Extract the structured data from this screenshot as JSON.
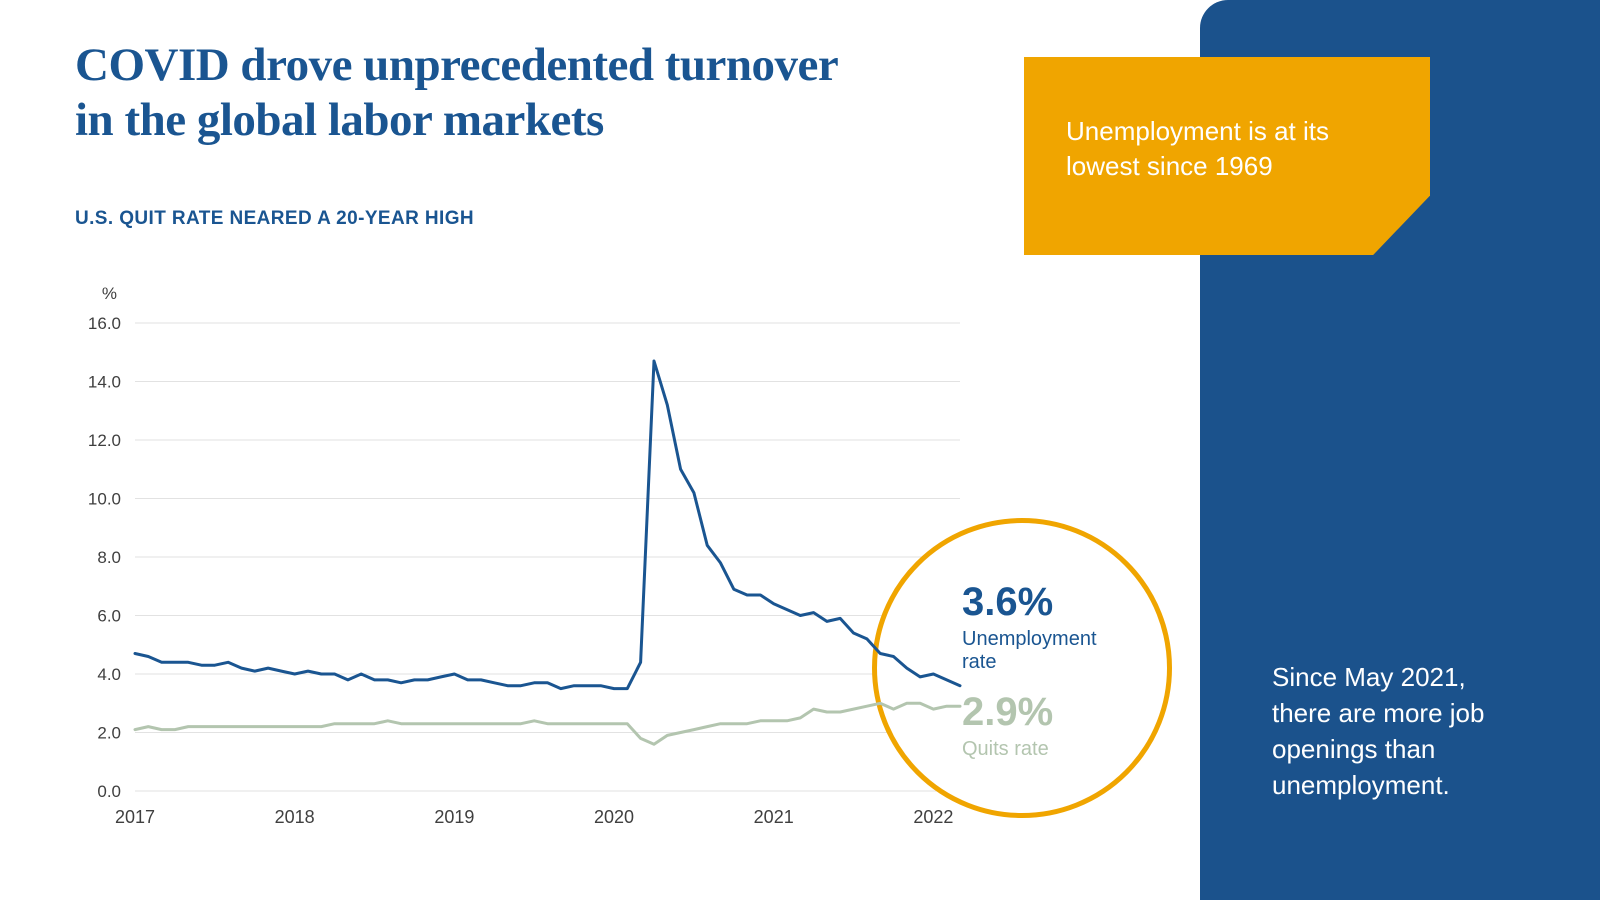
{
  "page": {
    "title_line1": "COVID drove unprecedented turnover",
    "title_line2": "in the global labor markets",
    "subtitle": "U.S. QUIT RATE NEARED A 20-YEAR HIGH"
  },
  "callout": {
    "text": "Unemployment is at its lowest since 1969"
  },
  "sidebar": {
    "text": "Since May 2021, there are more job openings than unemployment."
  },
  "badge": {
    "unemployment_value": "3.6%",
    "unemployment_label": "Unemployment rate",
    "quits_value": "2.9%",
    "quits_label": "Quits rate"
  },
  "colors": {
    "brand_blue": "#1a5591",
    "sidebar_blue": "#1b528c",
    "accent_orange": "#f0a500",
    "sage_green": "#b3c5af",
    "grid_gray": "#e2e2e2"
  },
  "chart_data": {
    "type": "line",
    "unit": "%",
    "title": "U.S. QUIT RATE NEARED A 20-YEAR HIGH",
    "ylim": [
      0,
      16
    ],
    "grid": true,
    "legend_position": "in-circle-annotation",
    "x_tick_labels": [
      "2017",
      "2018",
      "2019",
      "2020",
      "2021",
      "2022"
    ],
    "x_tick_interval": 12,
    "y_ticks": [
      16,
      14,
      12,
      10,
      8,
      6,
      4,
      2,
      0
    ],
    "y_tick_labels": [
      "16.0",
      "14.0",
      "12.0",
      "10.0",
      "8.0",
      "6.0",
      "4.0",
      "2.0",
      "0.0"
    ],
    "x_description": "Monthly values from Jan 2017 to Mar 2022",
    "series": [
      {
        "name": "Unemployment rate",
        "color": "#1a5591",
        "final_value": 3.6,
        "values": [
          4.7,
          4.6,
          4.4,
          4.4,
          4.4,
          4.3,
          4.3,
          4.4,
          4.2,
          4.1,
          4.2,
          4.1,
          4.0,
          4.1,
          4.0,
          4.0,
          3.8,
          4.0,
          3.8,
          3.8,
          3.7,
          3.8,
          3.8,
          3.9,
          4.0,
          3.8,
          3.8,
          3.7,
          3.6,
          3.6,
          3.7,
          3.7,
          3.5,
          3.6,
          3.6,
          3.6,
          3.5,
          3.5,
          4.4,
          14.7,
          13.2,
          11.0,
          10.2,
          8.4,
          7.8,
          6.9,
          6.7,
          6.7,
          6.4,
          6.2,
          6.0,
          6.1,
          5.8,
          5.9,
          5.4,
          5.2,
          4.7,
          4.6,
          4.2,
          3.9,
          4.0,
          3.8,
          3.6
        ]
      },
      {
        "name": "Quits rate",
        "color": "#b3c5af",
        "final_value": 2.9,
        "values": [
          2.1,
          2.2,
          2.1,
          2.1,
          2.2,
          2.2,
          2.2,
          2.2,
          2.2,
          2.2,
          2.2,
          2.2,
          2.2,
          2.2,
          2.2,
          2.3,
          2.3,
          2.3,
          2.3,
          2.4,
          2.3,
          2.3,
          2.3,
          2.3,
          2.3,
          2.3,
          2.3,
          2.3,
          2.3,
          2.3,
          2.4,
          2.3,
          2.3,
          2.3,
          2.3,
          2.3,
          2.3,
          2.3,
          1.8,
          1.6,
          1.9,
          2.0,
          2.1,
          2.2,
          2.3,
          2.3,
          2.3,
          2.4,
          2.4,
          2.4,
          2.5,
          2.8,
          2.7,
          2.7,
          2.8,
          2.9,
          3.0,
          2.8,
          3.0,
          3.0,
          2.8,
          2.9,
          2.9
        ]
      }
    ]
  }
}
